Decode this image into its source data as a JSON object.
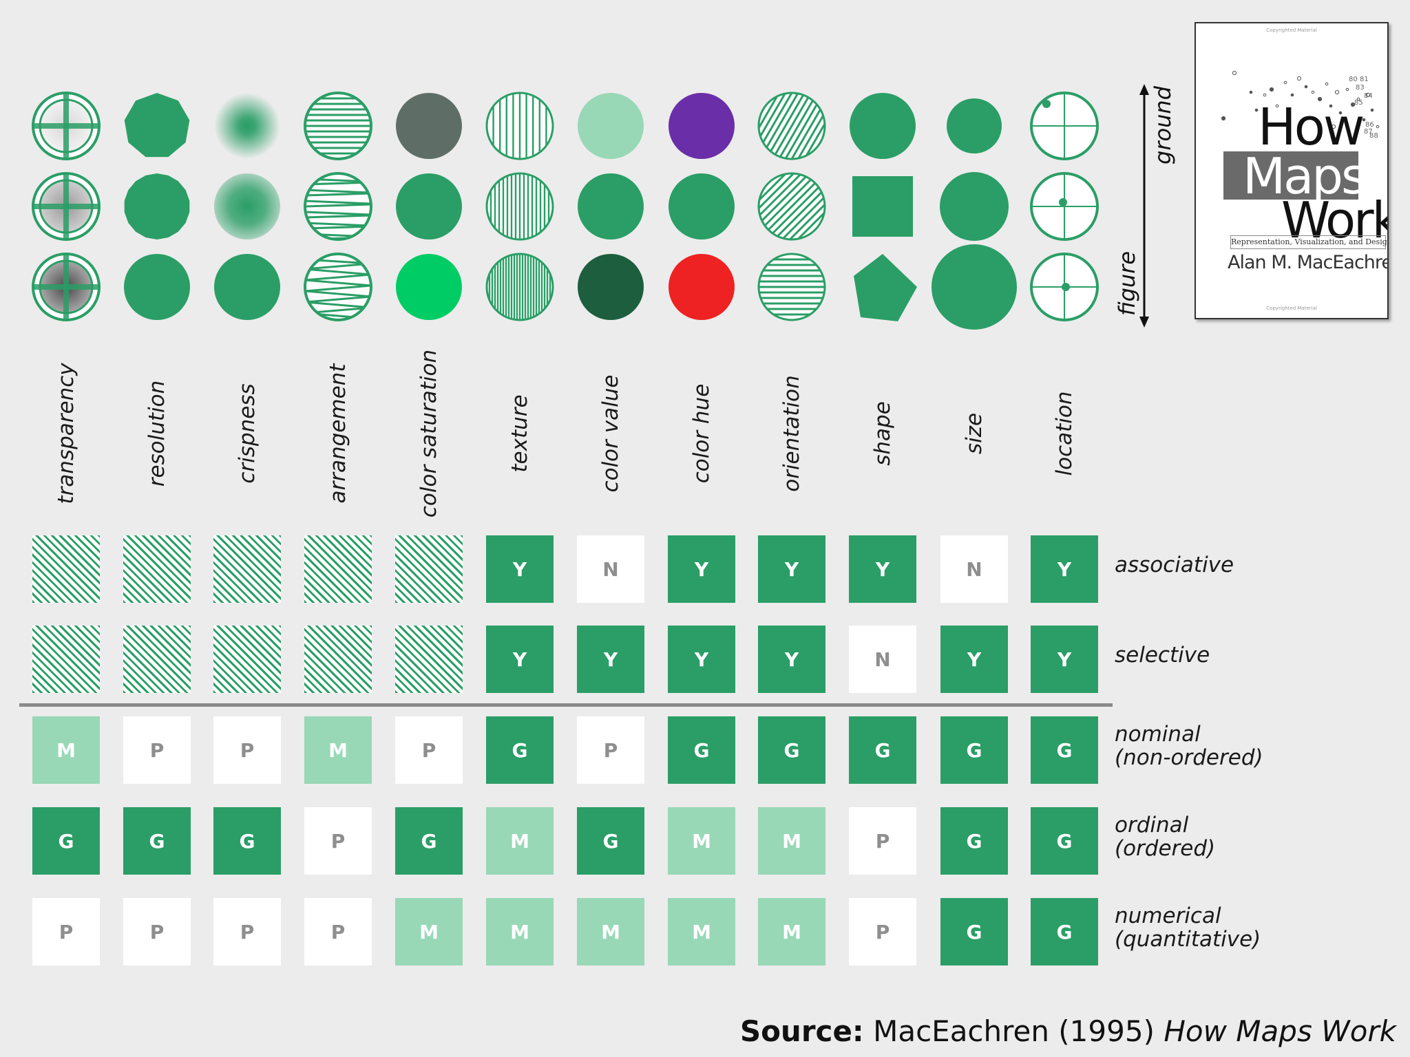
{
  "variables": [
    {
      "key": "transparency",
      "label": "transparency"
    },
    {
      "key": "resolution",
      "label": "resolution"
    },
    {
      "key": "crispness",
      "label": "crispness"
    },
    {
      "key": "arrangement",
      "label": "arrangement"
    },
    {
      "key": "color_saturation",
      "label": "color saturation"
    },
    {
      "key": "texture",
      "label": "texture"
    },
    {
      "key": "color_value",
      "label": "color value"
    },
    {
      "key": "color_hue",
      "label": "color hue"
    },
    {
      "key": "orientation",
      "label": "orientation"
    },
    {
      "key": "shape",
      "label": "shape"
    },
    {
      "key": "size",
      "label": "size"
    },
    {
      "key": "location",
      "label": "location"
    }
  ],
  "axis": {
    "ground": "ground",
    "figure": "figure"
  },
  "rows": [
    {
      "key": "associative",
      "label_lines": [
        "associative"
      ],
      "values": [
        "",
        "",
        "",
        "",
        "",
        "Y",
        "N",
        "Y",
        "Y",
        "Y",
        "N",
        "Y"
      ]
    },
    {
      "key": "selective",
      "label_lines": [
        "selective"
      ],
      "values": [
        "",
        "",
        "",
        "",
        "",
        "Y",
        "Y",
        "Y",
        "Y",
        "N",
        "Y",
        "Y"
      ]
    },
    {
      "key": "nominal",
      "label_lines": [
        "nominal",
        "(non-ordered)"
      ],
      "values": [
        "M",
        "P",
        "P",
        "M",
        "P",
        "G",
        "P",
        "G",
        "G",
        "G",
        "G",
        "G"
      ]
    },
    {
      "key": "ordinal",
      "label_lines": [
        "ordinal",
        "(ordered)"
      ],
      "values": [
        "G",
        "G",
        "G",
        "P",
        "G",
        "M",
        "G",
        "M",
        "M",
        "P",
        "G",
        "G"
      ]
    },
    {
      "key": "numerical",
      "label_lines": [
        "numerical",
        "(quantitative)"
      ],
      "values": [
        "P",
        "P",
        "P",
        "P",
        "M",
        "M",
        "M",
        "M",
        "M",
        "P",
        "G",
        "G"
      ]
    }
  ],
  "colors": {
    "green": "#2a9e66",
    "light_green": "#98d8b6",
    "dark_green": "#1c5e3e",
    "bright_green": "#00cc66",
    "purple": "#6a2fa8",
    "red": "#ee2222",
    "grey_green": "#5e6e66"
  },
  "book": {
    "copyright_top": "Copyrighted Material",
    "title_how": "How",
    "title_maps": "Maps",
    "title_work": "Work",
    "subtitle": "Representation, Visualization, and Design",
    "author": "Alan M. MacEachren",
    "copyright_bottom": "Copyrighted Material",
    "scatter_numbers": [
      "80",
      "81",
      "83",
      "84",
      "85",
      "86",
      "87",
      "88"
    ]
  },
  "source": {
    "label": "Source:",
    "text": "MacEachren (1995)",
    "title": "How Maps Work"
  }
}
